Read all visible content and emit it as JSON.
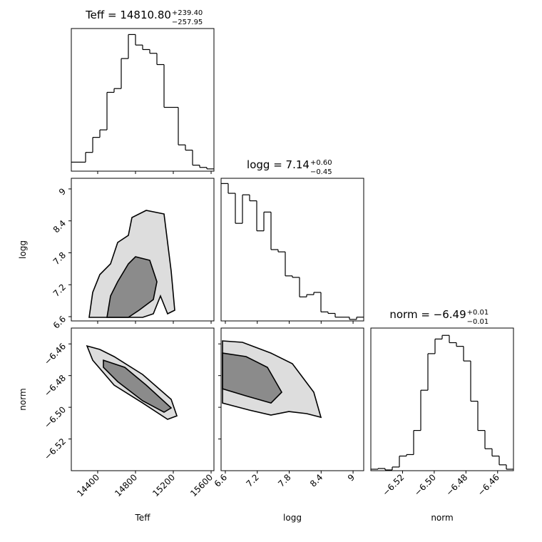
{
  "chart_data": {
    "type": "corner",
    "variables": [
      {
        "label": "Teff",
        "title": "Teff = 14810.80",
        "title_upper": "+239.40",
        "title_lower": "−257.95",
        "lim": [
          14121,
          15630
        ],
        "ticks": [
          14400,
          14800,
          15200,
          15600
        ],
        "bins": [
          14121,
          14196.5,
          14271.9,
          14347.4,
          14422.8,
          14498.3,
          14573.7,
          14649.2,
          14724.6,
          14800.1,
          14875.5,
          14951,
          15026.4,
          15101.9,
          15177.3,
          15252.8,
          15328.2,
          15403.7,
          15479.1,
          15554.6,
          15630
        ],
        "counts": [
          12,
          12,
          25,
          45,
          55,
          105,
          110,
          150,
          182,
          168,
          162,
          157,
          142,
          85,
          85,
          35,
          28,
          8,
          5,
          3
        ],
        "hist_ylim": [
          0,
          190
        ]
      },
      {
        "label": "logg",
        "title": "logg = 7.14",
        "title_upper": "+0.60",
        "title_lower": "−0.45",
        "lim": [
          6.52,
          9.2
        ],
        "ticks": [
          6.6,
          7.2,
          7.8,
          8.4,
          9.0
        ],
        "bins": [
          6.52,
          6.654,
          6.788,
          6.922,
          7.056,
          7.19,
          7.324,
          7.458,
          7.592,
          7.726,
          7.86,
          7.994,
          8.128,
          8.262,
          8.396,
          8.53,
          8.664,
          8.798,
          8.932,
          9.066,
          9.2
        ],
        "counts": [
          183,
          170,
          130,
          168,
          160,
          120,
          145,
          95,
          92,
          60,
          58,
          32,
          35,
          38,
          12,
          10,
          5,
          5,
          2,
          5
        ],
        "hist_ylim": [
          0,
          190
        ]
      },
      {
        "label": "norm",
        "title": "norm = −6.49",
        "title_upper": "+0.01",
        "title_lower": "−0.01",
        "lim": [
          -6.54,
          -6.45
        ],
        "ticks": [
          {
            "value": -6.52,
            "label": "−6.52"
          },
          {
            "value": -6.5,
            "label": "−6.50"
          },
          {
            "value": -6.48,
            "label": "−6.48"
          },
          {
            "value": -6.46,
            "label": "−6.46"
          }
        ],
        "bins": [
          -6.54,
          -6.5355,
          -6.531,
          -6.5265,
          -6.522,
          -6.5175,
          -6.513,
          -6.5085,
          -6.504,
          -6.4995,
          -6.495,
          -6.4905,
          -6.486,
          -6.4815,
          -6.477,
          -6.4725,
          -6.468,
          -6.4635,
          -6.459,
          -6.4545,
          -6.45
        ],
        "counts": [
          2,
          3,
          1,
          5,
          20,
          22,
          55,
          110,
          160,
          180,
          185,
          175,
          170,
          150,
          95,
          55,
          30,
          20,
          8,
          2
        ],
        "hist_ylim": [
          0,
          195
        ]
      }
    ],
    "pairs": [
      {
        "contours": [
          {
            "x": [
              14309.6,
              14347.4,
              14422.8,
              14536,
              14611.4,
              14724.6,
              14762.3,
              14913.2,
              15101.9,
              15139.6,
              15177.3,
              15215.1,
              15139.6,
              15064.1,
              14988.7,
              14875.5
            ],
            "y": [
              6.587,
              7.056,
              7.391,
              7.592,
              7.994,
              8.128,
              8.463,
              8.597,
              8.53,
              7.994,
              7.458,
              6.721,
              6.654,
              6.989,
              6.654,
              6.587
            ]
          },
          {
            "x": [
              14498.3,
              14536,
              14611.4,
              14724.6,
              14800.1,
              14950.9,
              15026.4,
              14988.7,
              14837.8,
              14724.6
            ],
            "y": [
              6.587,
              6.989,
              7.257,
              7.592,
              7.726,
              7.659,
              7.257,
              6.922,
              6.721,
              6.587
            ]
          }
        ]
      },
      {
        "contours": [
          {
            "x": [
              14287,
              14422.8,
              14573.7,
              14875.5,
              15177.3,
              15237.7,
              15139.6,
              14875.5,
              14573.7,
              14347.4
            ],
            "y": [
              -6.4613,
              -6.4635,
              -6.468,
              -6.4793,
              -6.495,
              -6.5054,
              -6.5076,
              -6.4973,
              -6.486,
              -6.4703
            ]
          },
          {
            "x": [
              14460.5,
              14686.9,
              14913.2,
              15177.3,
              15101.9,
              14875.5,
              14611.4,
              14460.5
            ],
            "y": [
              -6.4703,
              -6.4748,
              -6.486,
              -6.5004,
              -6.5031,
              -6.4959,
              -6.4838,
              -6.4748
            ]
          }
        ]
      },
      {
        "contours": [
          {
            "x": [
              6.547,
              6.922,
              7.458,
              7.86,
              8.262,
              8.396,
              8.128,
              7.793,
              7.458,
              7.056,
              6.547
            ],
            "y": [
              -6.4581,
              -6.459,
              -6.4658,
              -6.4725,
              -6.4905,
              -6.5063,
              -6.504,
              -6.5027,
              -6.5049,
              -6.5018,
              -6.4973
            ]
          },
          {
            "x": [
              6.547,
              6.989,
              7.391,
              7.659,
              7.458,
              6.989,
              6.547
            ],
            "y": [
              -6.4658,
              -6.468,
              -6.4748,
              -6.4905,
              -6.4973,
              -6.4928,
              -6.4883
            ]
          }
        ]
      }
    ]
  }
}
